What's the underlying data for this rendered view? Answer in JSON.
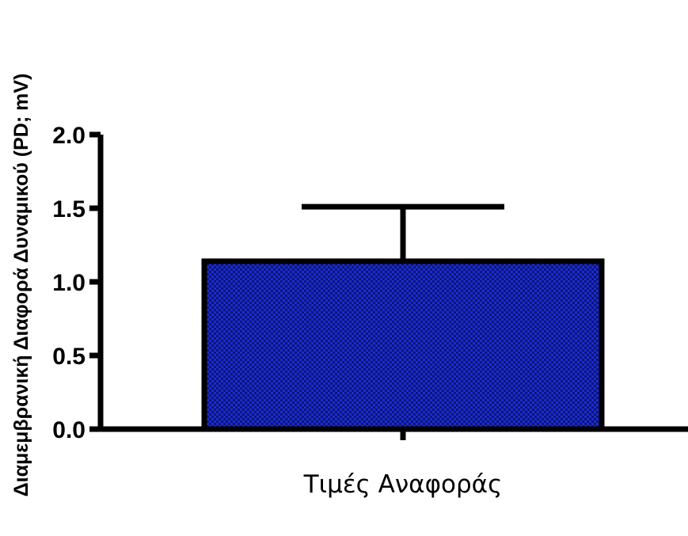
{
  "chart_data": {
    "type": "bar",
    "categories": [
      "Τιμές Αναφοράς"
    ],
    "values": [
      1.14
    ],
    "error_bars": [
      0.37
    ],
    "title": "",
    "xlabel": "",
    "ylabel": "Διαμεμβρανική Διαφορά Δυναμικού (PD; mV)",
    "ylim": [
      0,
      2.0
    ],
    "yticks": [
      "0.0",
      "0.5",
      "1.0",
      "1.5",
      "2.0"
    ],
    "grid": false,
    "bar_color": "#1a2bd6",
    "bar_pattern": "crosshatch"
  }
}
